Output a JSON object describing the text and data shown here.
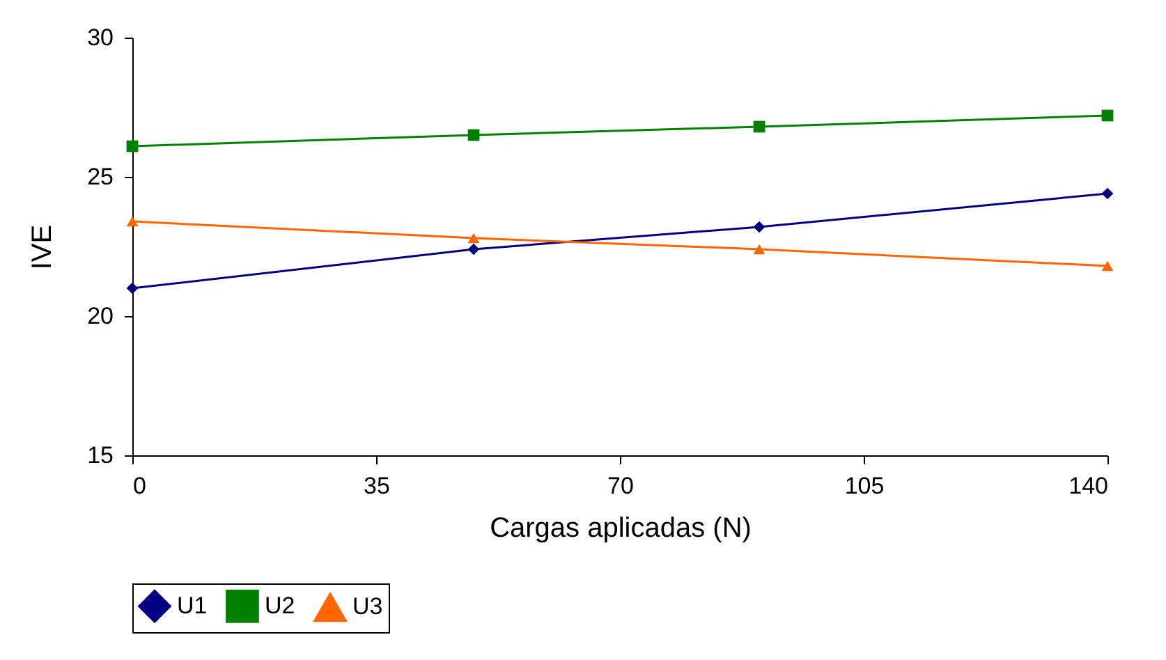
{
  "chart_data": {
    "type": "line",
    "xlabel": "Cargas aplicadas (N)",
    "ylabel": "IVE",
    "x": [
      0,
      49,
      90,
      140
    ],
    "series": [
      {
        "name": "U1",
        "color": "#000080",
        "marker": "diamond",
        "values": [
          21.0,
          22.4,
          23.2,
          24.4
        ]
      },
      {
        "name": "U2",
        "color": "#008000",
        "marker": "square",
        "values": [
          26.1,
          26.5,
          26.8,
          27.2
        ]
      },
      {
        "name": "U3",
        "color": "#ff6600",
        "marker": "triangle",
        "values": [
          23.4,
          22.8,
          22.4,
          21.8
        ]
      }
    ],
    "xlim": [
      0,
      140
    ],
    "xticks": [
      0,
      35,
      70,
      105,
      140
    ],
    "ylim": [
      15,
      30
    ],
    "yticks": [
      15,
      20,
      25,
      30
    ],
    "grid": false,
    "legend": "bottom",
    "line_style": "solid"
  }
}
